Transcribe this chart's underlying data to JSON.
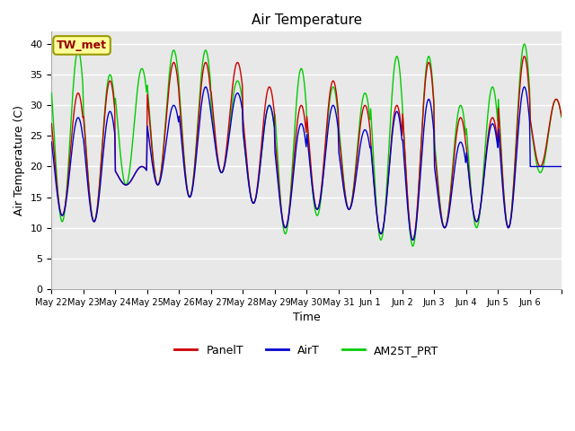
{
  "title": "Air Temperature",
  "ylabel": "Air Temperature (C)",
  "xlabel": "Time",
  "annotation": "TW_met",
  "ylim": [
    0,
    42
  ],
  "yticks": [
    0,
    5,
    10,
    15,
    20,
    25,
    30,
    35,
    40
  ],
  "fig_bg_color": "#ffffff",
  "plot_bg_color": "#e8e8e8",
  "grid_color": "#ffffff",
  "line_colors": {
    "PanelT": "#cc0000",
    "AirT": "#0000cc",
    "AM25T_PRT": "#00cc00"
  },
  "x_tick_labels": [
    "May 22",
    "May 23",
    "May 24",
    "May 25",
    "May 26",
    "May 27",
    "May 28",
    "May 29",
    "May 30",
    "May 31",
    "Jun 1",
    "Jun 2",
    "Jun 3",
    "Jun 4",
    "Jun 5",
    "Jun 6"
  ],
  "annotation_bg": "#ffff99",
  "annotation_fg": "#990000",
  "annotation_border": "#999900",
  "n_days": 16,
  "day_mins_panel": [
    12,
    11,
    17,
    17,
    15,
    19,
    14,
    10,
    13,
    13,
    9,
    8,
    10,
    11,
    10,
    20
  ],
  "day_maxs_panel": [
    32,
    34,
    20,
    37,
    37,
    37,
    33,
    30,
    34,
    30,
    30,
    37,
    28,
    28,
    38,
    31
  ],
  "day_mins_air": [
    12,
    11,
    17,
    17,
    15,
    19,
    14,
    10,
    13,
    13,
    9,
    8,
    10,
    11,
    10,
    20
  ],
  "day_maxs_air": [
    28,
    29,
    20,
    30,
    33,
    32,
    30,
    27,
    30,
    26,
    29,
    31,
    24,
    27,
    33,
    20
  ],
  "day_mins_am25": [
    11,
    11,
    17,
    17,
    15,
    19,
    14,
    9,
    12,
    13,
    8,
    7,
    10,
    10,
    10,
    19
  ],
  "day_maxs_am25": [
    39,
    35,
    36,
    39,
    39,
    34,
    30,
    36,
    33,
    32,
    38,
    38,
    30,
    33,
    40,
    31
  ],
  "peak_hour": 14.0,
  "figsize": [
    6.4,
    4.8
  ],
  "dpi": 100,
  "title_fontsize": 11,
  "tick_fontsize": 7,
  "label_fontsize": 9,
  "legend_fontsize": 9,
  "linewidth": 1.0
}
